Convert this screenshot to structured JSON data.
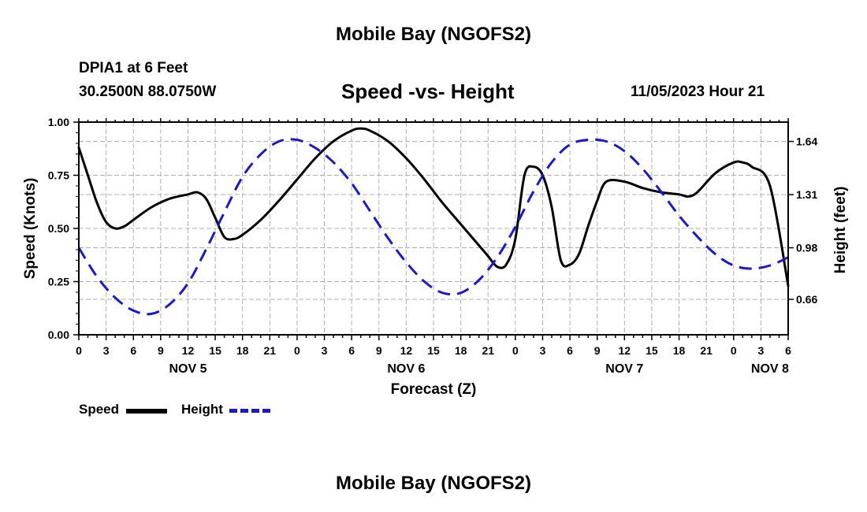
{
  "header": {
    "title": "Mobile Bay (NGOFS2)",
    "station": "DPIA1 at 6 Feet",
    "coords": "30.2500N  88.0750W",
    "plot_title": "Speed -vs- Height",
    "datetime": "11/05/2023 Hour 21"
  },
  "footer": {
    "title": "Mobile Bay (NGOFS2)"
  },
  "legend": {
    "speed_label": "Speed",
    "height_label": "Height"
  },
  "colors": {
    "speed": "#000000",
    "height": "#1a1acc",
    "grid": "#b0b0b0"
  },
  "chart_data": {
    "type": "line",
    "xlabel": "Forecast (Z)",
    "ylabel": "Speed (Knots)",
    "y2label": "Height (feet)",
    "xlim": [
      0,
      78
    ],
    "ylim": [
      0,
      1
    ],
    "y2lim": [
      0.44,
      1.76
    ],
    "grid": true,
    "legend_position": "bottom-left",
    "x_ticks": [
      0,
      3,
      6,
      9,
      12,
      15,
      18,
      21,
      24,
      27,
      30,
      33,
      36,
      39,
      42,
      45,
      48,
      51,
      54,
      57,
      60,
      63,
      66,
      69,
      72,
      75,
      78
    ],
    "x_tick_labels": [
      "0",
      "3",
      "6",
      "9",
      "12",
      "15",
      "18",
      "21",
      "0",
      "3",
      "6",
      "9",
      "12",
      "15",
      "18",
      "21",
      "0",
      "3",
      "6",
      "9",
      "12",
      "15",
      "18",
      "21",
      "0",
      "3",
      "6"
    ],
    "date_labels": [
      {
        "x": 12,
        "label": "NOV 5"
      },
      {
        "x": 36,
        "label": "NOV 6"
      },
      {
        "x": 60,
        "label": "NOV 7"
      },
      {
        "x": 76,
        "label": "NOV 8"
      }
    ],
    "y_ticks": [
      0.0,
      0.25,
      0.5,
      0.75,
      1.0
    ],
    "y_tick_labels": [
      "0.00",
      "0.25",
      "0.50",
      "0.75",
      "1.00"
    ],
    "y2_ticks": [
      0.66,
      0.98,
      1.31,
      1.64
    ],
    "y2_tick_labels": [
      "0.66",
      "0.98",
      "1.31",
      "1.64"
    ],
    "series": [
      {
        "name": "Speed",
        "axis": "left",
        "style": "solid",
        "x": [
          0,
          1,
          2,
          3,
          4,
          5,
          6,
          8,
          10,
          12,
          13,
          14,
          15,
          16,
          17,
          18,
          20,
          22,
          24,
          26,
          28,
          30,
          31,
          32,
          34,
          36,
          38,
          40,
          42,
          44,
          45,
          46,
          47,
          48,
          49,
          50,
          51,
          52,
          53,
          54,
          55,
          56,
          57,
          58,
          60,
          62,
          64,
          66,
          67,
          68,
          70,
          72,
          73,
          74,
          76,
          78
        ],
        "y": [
          0.88,
          0.75,
          0.62,
          0.53,
          0.5,
          0.51,
          0.54,
          0.6,
          0.64,
          0.66,
          0.67,
          0.64,
          0.55,
          0.46,
          0.45,
          0.47,
          0.54,
          0.63,
          0.73,
          0.83,
          0.91,
          0.96,
          0.97,
          0.96,
          0.91,
          0.83,
          0.73,
          0.62,
          0.52,
          0.42,
          0.37,
          0.32,
          0.33,
          0.45,
          0.75,
          0.79,
          0.75,
          0.6,
          0.35,
          0.33,
          0.38,
          0.51,
          0.63,
          0.72,
          0.72,
          0.69,
          0.67,
          0.66,
          0.65,
          0.67,
          0.76,
          0.81,
          0.81,
          0.79,
          0.7,
          0.23
        ]
      },
      {
        "name": "Height",
        "axis": "right",
        "style": "dashed",
        "x": [
          0,
          2,
          4,
          6,
          8,
          10,
          12,
          14,
          16,
          18,
          20,
          22,
          24,
          26,
          28,
          30,
          32,
          34,
          36,
          38,
          40,
          42,
          44,
          46,
          48,
          50,
          52,
          54,
          56,
          58,
          60,
          62,
          64,
          66,
          68,
          70,
          72,
          74,
          76,
          78
        ],
        "y": [
          0.98,
          0.8,
          0.67,
          0.59,
          0.57,
          0.63,
          0.76,
          0.97,
          1.2,
          1.42,
          1.56,
          1.64,
          1.65,
          1.6,
          1.51,
          1.38,
          1.21,
          1.04,
          0.89,
          0.77,
          0.7,
          0.7,
          0.78,
          0.92,
          1.11,
          1.33,
          1.51,
          1.62,
          1.65,
          1.64,
          1.58,
          1.47,
          1.33,
          1.18,
          1.05,
          0.94,
          0.87,
          0.85,
          0.87,
          0.92
        ]
      }
    ]
  }
}
